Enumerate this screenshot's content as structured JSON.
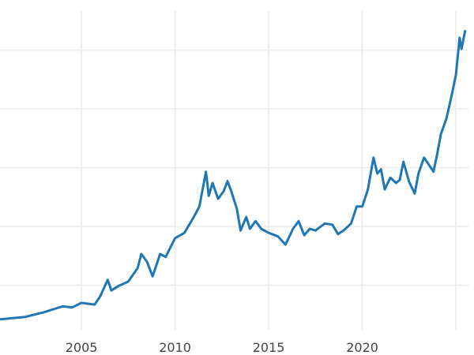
{
  "chart_data": {
    "type": "line",
    "title": "",
    "xlabel": "",
    "ylabel": "",
    "xlim": [
      2000.65,
      2025.6
    ],
    "x_ticks": [
      2005,
      2010,
      2015,
      2020,
      2025
    ],
    "x_tick_labels": [
      "2005",
      "2010",
      "2015",
      "2020",
      ""
    ],
    "y_gridlines": [
      1,
      2,
      3,
      4,
      5
    ],
    "y_tick_labels": [],
    "ylim": [
      0,
      5.85
    ],
    "grid": true,
    "line_color": "#1f77b4",
    "series": [
      {
        "x": [
          2000.65,
          2002,
          2003,
          2003.5,
          2004,
          2004.5,
          2005,
          2005.7,
          2006,
          2006.4,
          2006.6,
          2007,
          2007.5,
          2008,
          2008.2,
          2008.5,
          2008.8,
          2009,
          2009.2,
          2009.5,
          2010,
          2010.5,
          2011,
          2011.3,
          2011.65,
          2011.8,
          2012,
          2012.3,
          2012.6,
          2012.8,
          2013,
          2013.3,
          2013.5,
          2013.8,
          2014,
          2014.3,
          2014.6,
          2015,
          2015.5,
          2015.9,
          2016.3,
          2016.6,
          2016.9,
          2017.2,
          2017.5,
          2018,
          2018.4,
          2018.7,
          2019,
          2019.4,
          2019.7,
          2020,
          2020.3,
          2020.6,
          2020.8,
          2021,
          2021.2,
          2021.5,
          2021.8,
          2022,
          2022.2,
          2022.5,
          2022.8,
          2023,
          2023.3,
          2023.6,
          2023.8,
          2024,
          2024.2,
          2024.5,
          2024.8,
          2025,
          2025.2,
          2025.3,
          2025.5
        ],
        "y": [
          0.42,
          0.46,
          0.54,
          0.59,
          0.64,
          0.62,
          0.7,
          0.67,
          0.81,
          1.09,
          0.91,
          0.99,
          1.06,
          1.29,
          1.53,
          1.4,
          1.15,
          1.34,
          1.53,
          1.48,
          1.8,
          1.89,
          2.16,
          2.34,
          2.93,
          2.52,
          2.74,
          2.47,
          2.6,
          2.77,
          2.6,
          2.3,
          1.93,
          2.16,
          1.96,
          2.09,
          1.96,
          1.89,
          1.83,
          1.69,
          1.96,
          2.09,
          1.85,
          1.96,
          1.93,
          2.05,
          2.03,
          1.87,
          1.93,
          2.05,
          2.34,
          2.34,
          2.63,
          3.17,
          2.9,
          2.97,
          2.63,
          2.83,
          2.74,
          2.79,
          3.1,
          2.76,
          2.56,
          2.9,
          3.17,
          3.03,
          2.93,
          3.23,
          3.57,
          3.84,
          4.27,
          4.58,
          5.21,
          5.02,
          5.34
        ]
      }
    ]
  }
}
